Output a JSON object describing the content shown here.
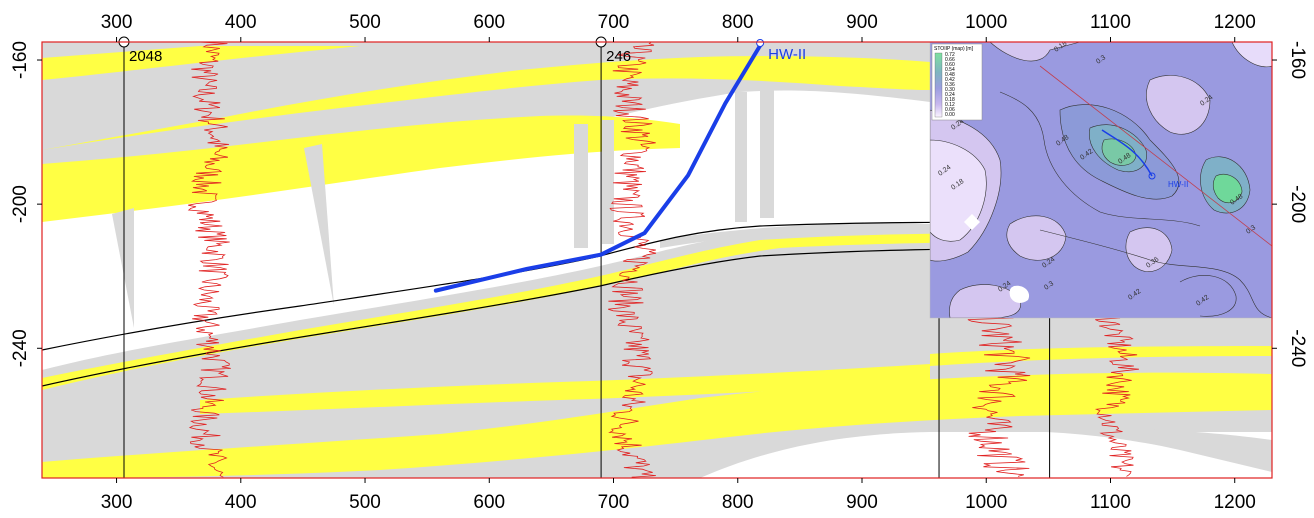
{
  "section": {
    "x_axis": {
      "range": [
        240,
        1230
      ],
      "ticks": [
        300,
        400,
        500,
        600,
        700,
        800,
        900,
        1000,
        1100,
        1200
      ]
    },
    "y_axis": {
      "range": [
        -155,
        -276
      ],
      "ticks": [
        -160,
        -200,
        -240
      ]
    },
    "wells": [
      {
        "name": "2048",
        "x": 306
      },
      {
        "name": "246",
        "x": 690
      }
    ],
    "extra_well_x": [
      962,
      1051
    ],
    "horizontal_well": {
      "name": "HW-II",
      "path": [
        [
          557,
          -224
        ],
        [
          630,
          -218
        ],
        [
          690,
          -214
        ],
        [
          725,
          -208
        ],
        [
          760,
          -192
        ],
        [
          790,
          -172
        ],
        [
          818,
          -156
        ]
      ]
    },
    "colors": {
      "reservoir": "#ffff44",
      "shale": "#d9d9d9",
      "log": "#e02020",
      "well_path": "#1a3ee8",
      "frame": "#e02020"
    }
  },
  "inset_map": {
    "legend_title": "STOIIP (map) [m]",
    "legend_values": [
      "0.72",
      "0.66",
      "0.60",
      "0.54",
      "0.48",
      "0.42",
      "0.36",
      "0.30",
      "0.24",
      "0.18",
      "0.12",
      "0.06",
      "0.00"
    ],
    "contour_labels": [
      "0.18",
      "0.3",
      "0.24",
      "0.24",
      "0.48",
      "0.42",
      "0.48",
      "0.24",
      "0.18",
      "0.3",
      "0.24",
      "0.3",
      "0.42",
      "0.36",
      "0.42",
      "0.48",
      "0.24"
    ],
    "well_label": "HW-II"
  }
}
